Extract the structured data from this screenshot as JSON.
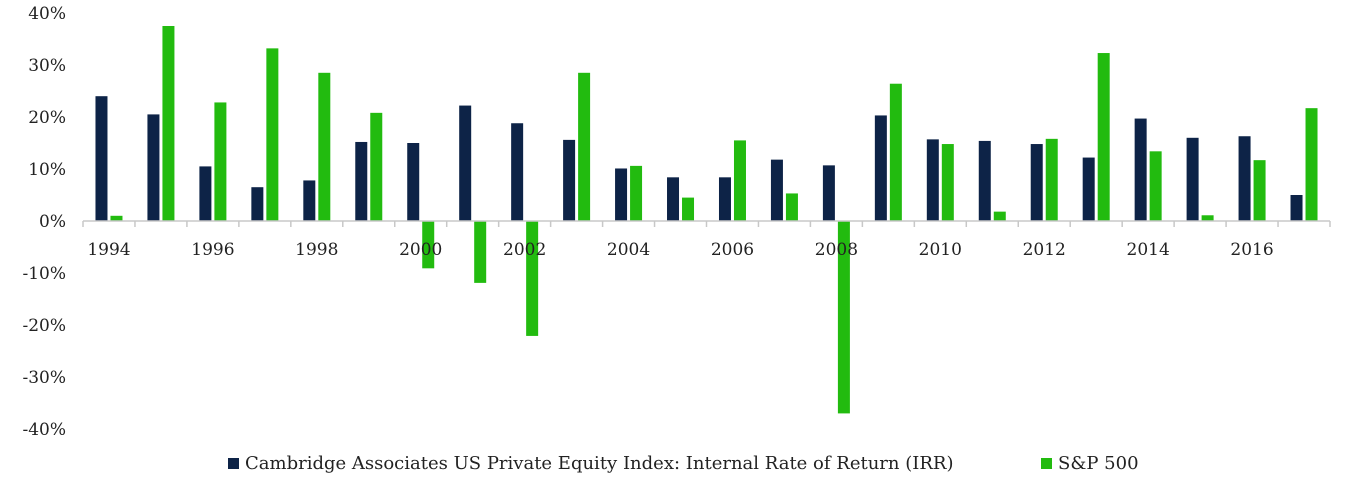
{
  "chart_data": {
    "type": "bar",
    "x": [
      1994,
      1995,
      1996,
      1997,
      1998,
      1999,
      2000,
      2001,
      2002,
      2003,
      2004,
      2005,
      2006,
      2007,
      2008,
      2009,
      2010,
      2011,
      2012,
      2013,
      2014,
      2015,
      2016,
      2017
    ],
    "x_tick_labels": [
      "1994",
      "1996",
      "1998",
      "2000",
      "2002",
      "2004",
      "2006",
      "2008",
      "2010",
      "2012",
      "2014",
      "2016"
    ],
    "series": [
      {
        "name": "Cambridge Associates US Private Equity Index: Internal Rate of Return (IRR)",
        "color": "#0d2347",
        "values": [
          24.0,
          20.5,
          10.5,
          6.5,
          7.8,
          15.2,
          15.0,
          22.2,
          18.8,
          15.6,
          10.1,
          8.4,
          8.4,
          11.8,
          10.7,
          20.3,
          15.7,
          15.4,
          14.8,
          12.2,
          19.7,
          16.0,
          16.3,
          5.0
        ]
      },
      {
        "name": "S&P 500",
        "color": "#22bb0f",
        "values": [
          1.0,
          37.5,
          22.8,
          33.2,
          28.5,
          20.8,
          -9.1,
          -11.9,
          -22.1,
          28.5,
          10.6,
          4.5,
          15.5,
          5.3,
          -37.0,
          26.4,
          14.8,
          1.8,
          15.8,
          32.3,
          13.4,
          1.1,
          11.7,
          21.7
        ]
      }
    ],
    "y_ticks": [
      "40%",
      "30%",
      "20%",
      "10%",
      "0%",
      "-10%",
      "-20%",
      "-30%",
      "-40%"
    ],
    "ylim": [
      -40,
      40
    ],
    "legend_position": "bottom",
    "grid": false
  }
}
